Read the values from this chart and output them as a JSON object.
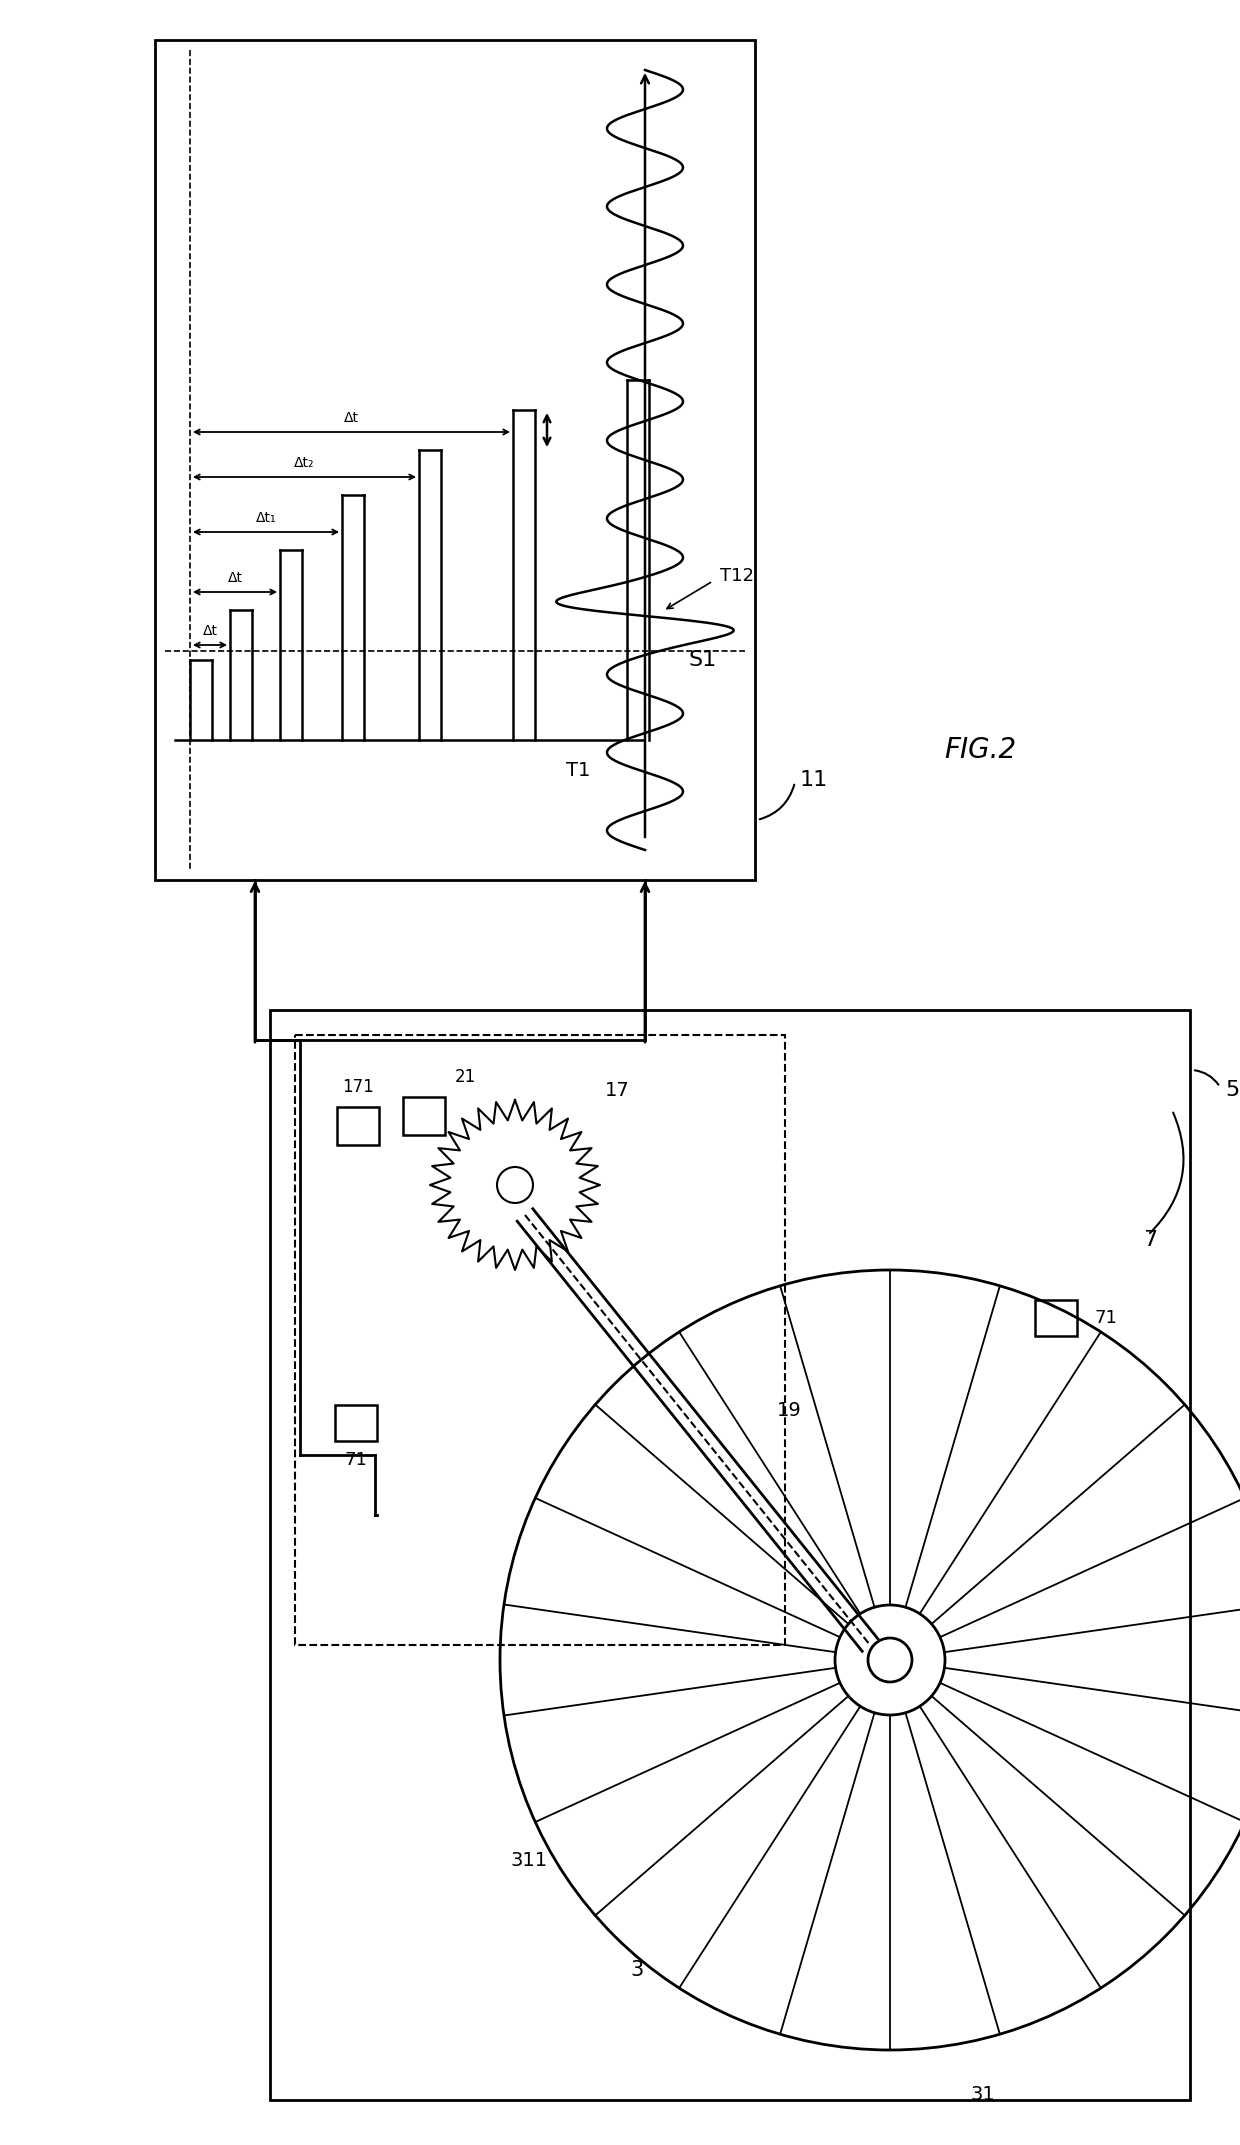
{
  "bg_color": "#ffffff",
  "fig_label": "FIG.2",
  "label_11": "11",
  "label_5": "5",
  "label_7": "7",
  "label_3": "3",
  "label_31": "31",
  "label_311": "311",
  "label_17": "17",
  "label_171": "171",
  "label_21": "21",
  "label_19": "19",
  "label_71a": "71",
  "label_71b": "71",
  "label_S1": "S1",
  "label_T1": "T1",
  "label_T12": "T12",
  "label_dt": "Δt",
  "label_dt1": "Δt₁",
  "label_dt2": "Δt₂",
  "label_dt_top": "Δt",
  "label_dt_bottom": "Δt"
}
